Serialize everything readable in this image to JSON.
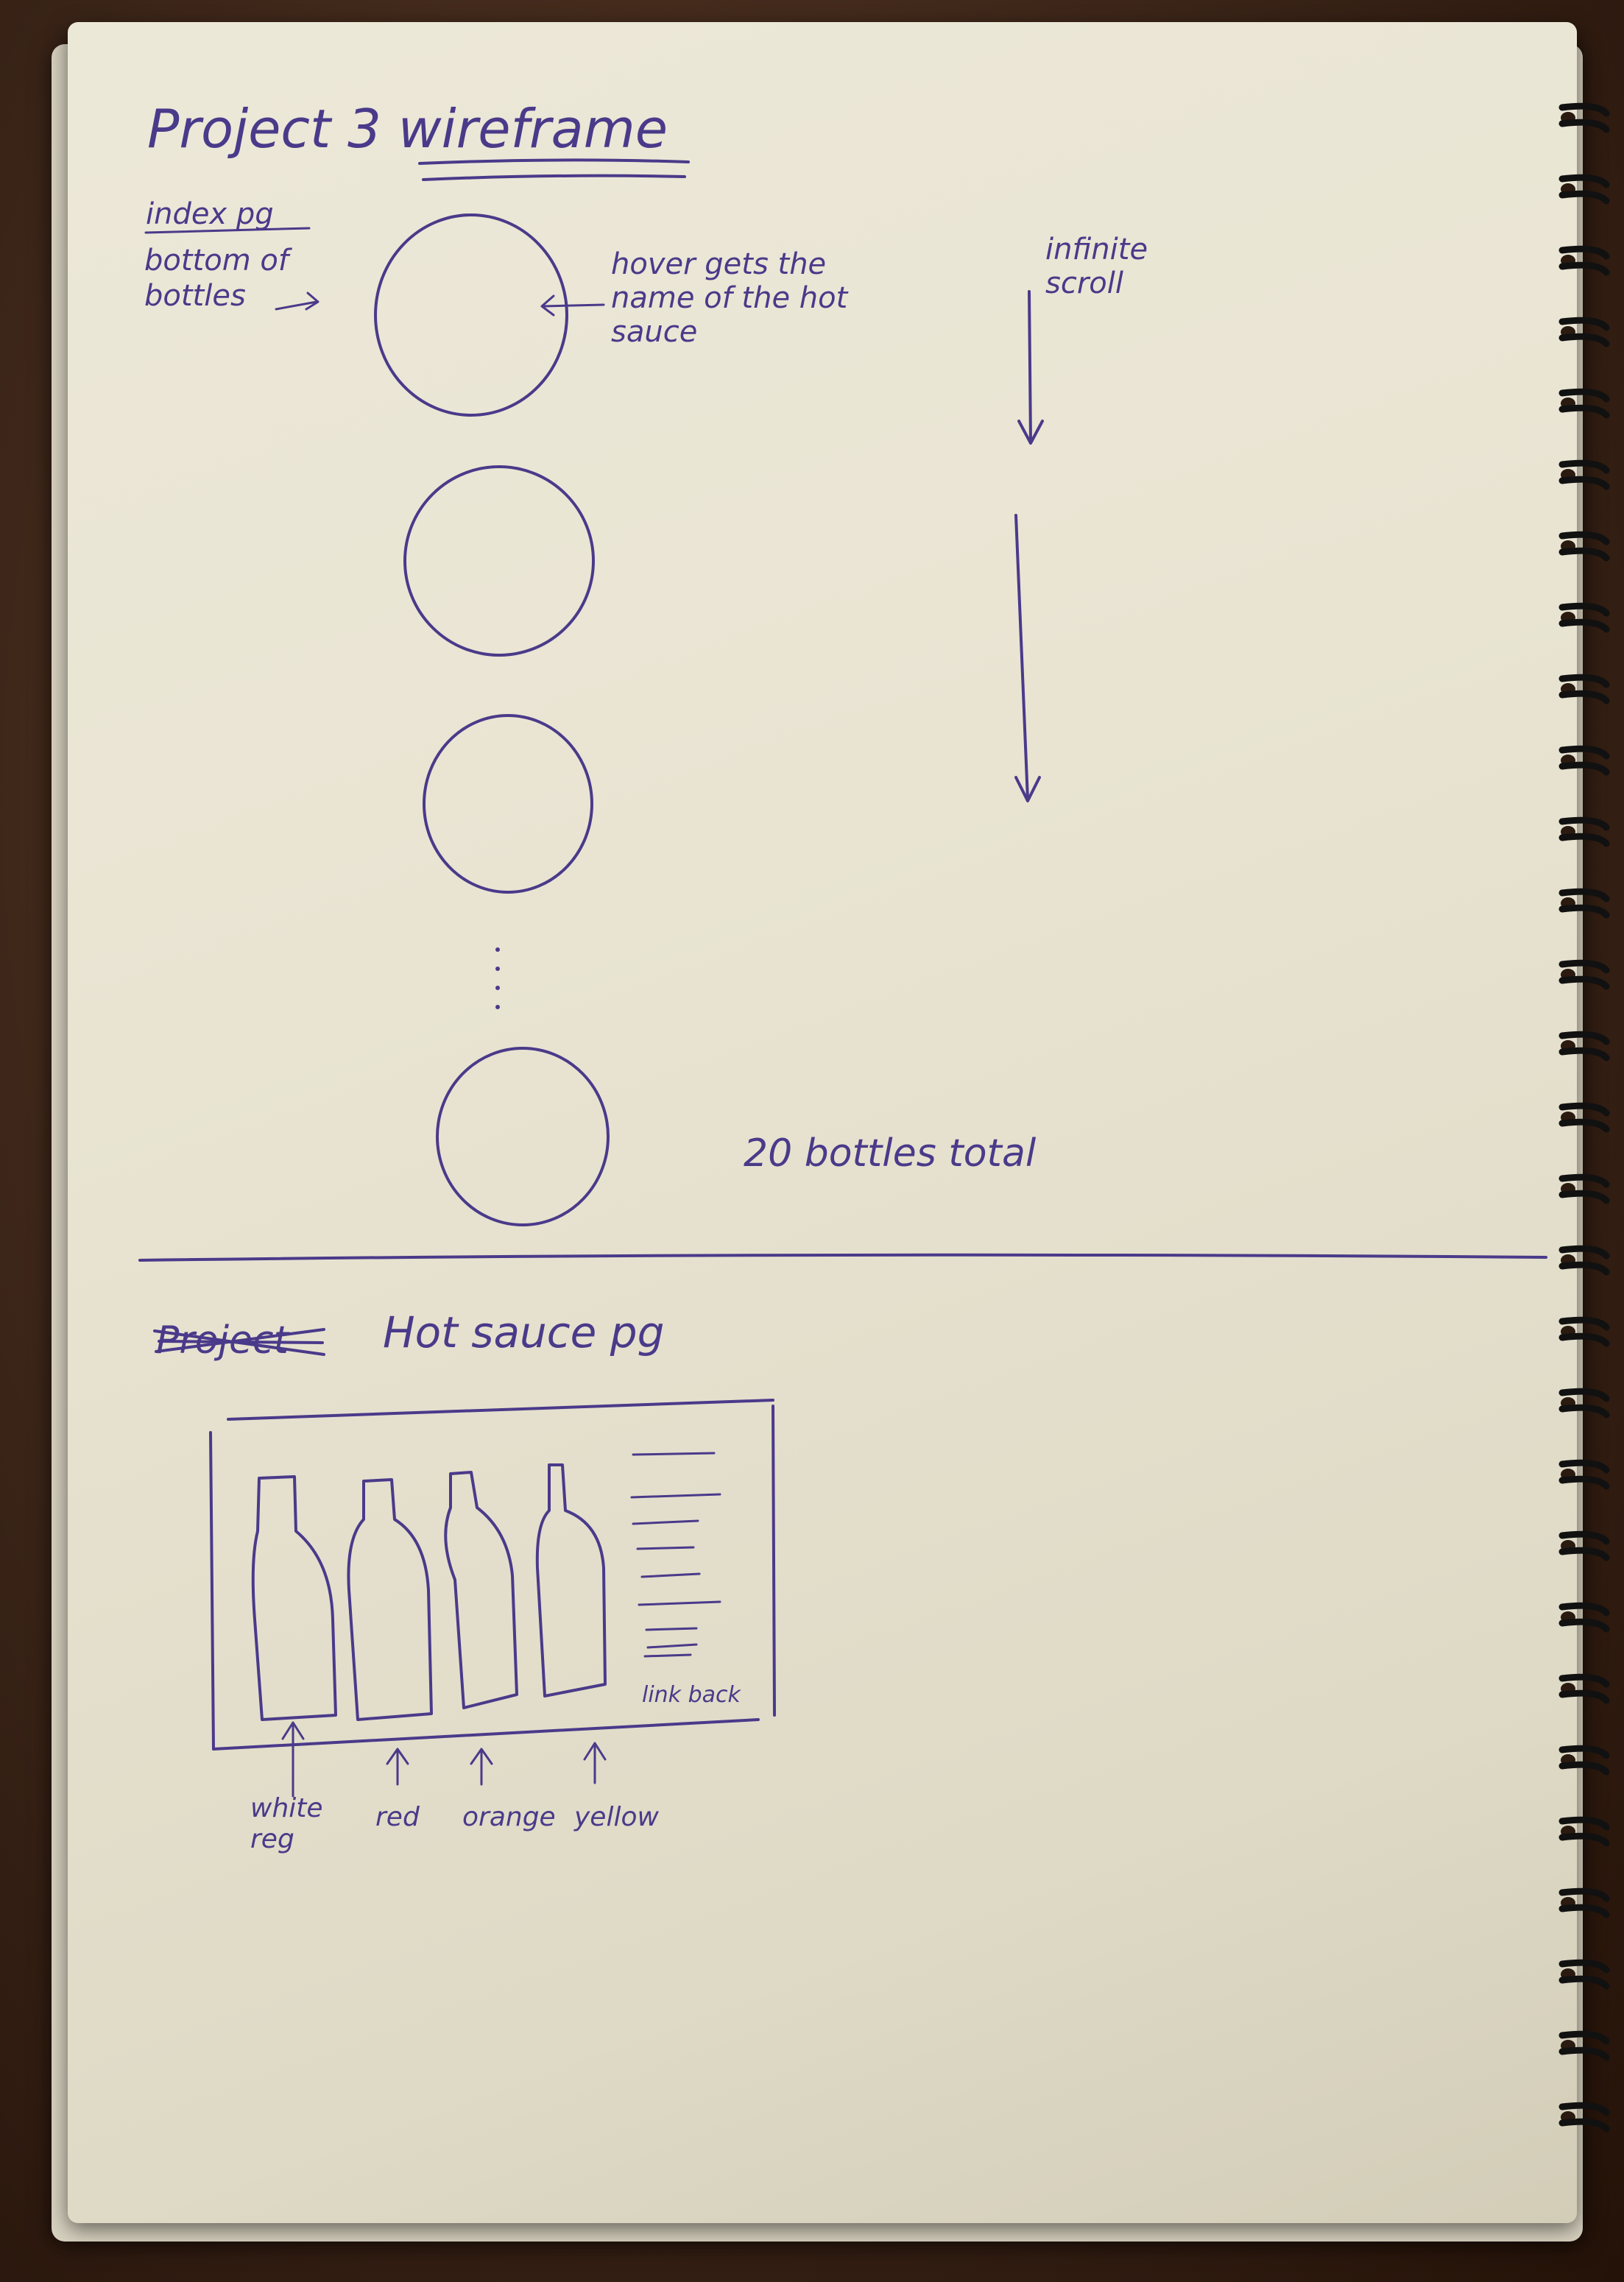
{
  "title": "Project 3 wireframe",
  "index_section": {
    "label": "index pg",
    "side_note": "bottom of bottles",
    "hover_note": "hover gets the name of the hot sauce",
    "scroll_note": "infinite scroll",
    "count_note": "20 bottles total"
  },
  "hotsauce_section": {
    "crossed_label": "Project",
    "label": "Hot sauce pg",
    "link_label": "link back",
    "bottle_labels": [
      "white reg",
      "red",
      "orange",
      "yellow"
    ]
  },
  "colors": {
    "ink": "#4a3a8a",
    "paper": "#e9e4d2",
    "background": "#3a2418"
  }
}
